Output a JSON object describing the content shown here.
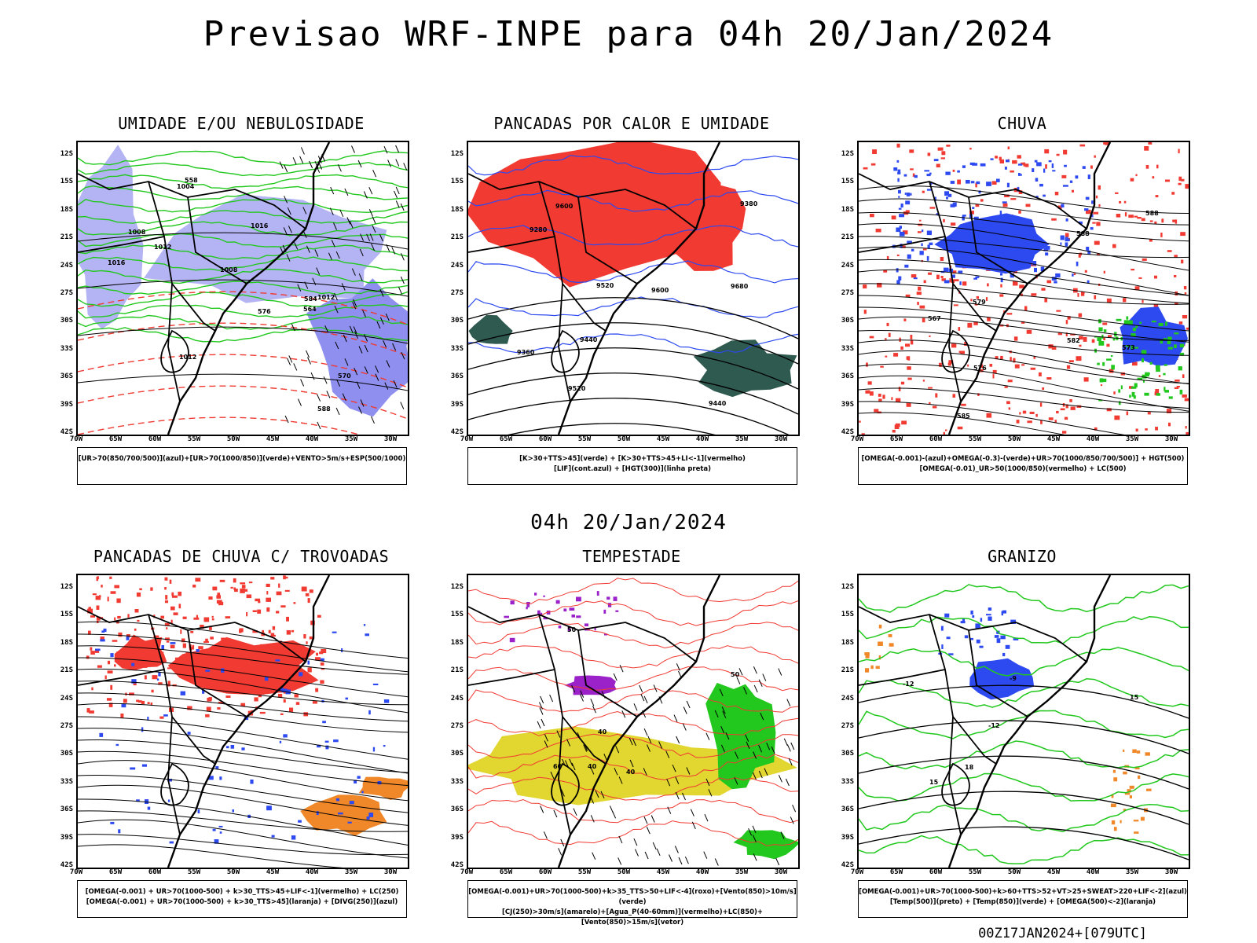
{
  "title": "Previsao WRF-INPE  para 04h 20/Jan/2024",
  "middle_title": "04h 20/Jan/2024",
  "footer": "00Z17JAN2024+[079UTC]",
  "lat_labels": [
    "12S",
    "15S",
    "18S",
    "21S",
    "24S",
    "27S",
    "30S",
    "33S",
    "36S",
    "39S",
    "42S"
  ],
  "lon_labels": [
    "70W",
    "65W",
    "60W",
    "55W",
    "50W",
    "45W",
    "40W",
    "35W",
    "30W"
  ],
  "panels": [
    {
      "title": "UMIDADE E/OU NEBULOSIDADE",
      "legend": [
        "[UR>70(850/700/500)](azul)+[UR>70(1000/850)](verde)+VENTO>5m/s+ESP(500/1000)"
      ],
      "contour_labels": [
        "1012",
        "1008",
        "1008",
        "1004",
        "1012",
        "1016",
        "1016",
        "576",
        "570",
        "564",
        "558",
        "584",
        "588",
        "1012"
      ]
    },
    {
      "title": "PANCADAS POR CALOR E UMIDADE",
      "legend": [
        "[K>30+TTS>45](verde) + [K>30+TTS>45+LI<-1](vermelho)",
        "[LIF](cont.azul) + [HGT(300)](linha preta)"
      ],
      "contour_labels": [
        "9600",
        "9680",
        "9520",
        "9440",
        "9360",
        "9280",
        "9600",
        "9520",
        "9440",
        "9380"
      ]
    },
    {
      "title": "CHUVA",
      "legend": [
        "[OMEGA(-0.001)-(azul)+OMEGA(-0.3)-(verde)+UR>70(1000/850/700/500)] + HGT(500)",
        "[OMEGA(-0.01)_UR>50(1000/850)(vermelho) + LC(500)"
      ],
      "contour_labels": [
        "585",
        "582",
        "579",
        "576",
        "573",
        "588",
        "567",
        "588"
      ]
    },
    {
      "title": "PANCADAS DE CHUVA C/ TROVOADAS",
      "legend": [
        "[OMEGA(-0.001) + UR>70(1000-500) + k>30_TTS>45+LIF<-1](vermelho) + LC(250)",
        "[OMEGA(-0.001) + UR>70(1000-500) + k>30_TTS>45](laranja) + [DIVG(250)](azul)"
      ],
      "contour_labels": []
    },
    {
      "title": "TEMPESTADE",
      "legend": [
        "[OMEGA(-0.001)+UR>70(1000-500)+k>35_TTS>50+LIF<-4](roxo)+[Vento(850)>10m/s](verde)",
        "[CJ(250)>30m/s](amarelo)+[Agua_P(40-60mm)](vermelho)+LC(850)+[Vento(850)>15m/s](vetor)"
      ],
      "contour_labels": [
        "40",
        "50",
        "60",
        "40",
        "40",
        "50"
      ]
    },
    {
      "title": "GRANIZO",
      "legend": [
        "[OMEGA(-0.001)+UR>70(1000-500)+k>60+TTS>52+VT>25+SWEAT>220+LIF<-2](azul)",
        "[Temp(500)](preto) + [Temp(850)](verde) + [OMEGA(500)<-2](laranja)"
      ],
      "contour_labels": [
        "-12",
        "-12",
        "15",
        "15",
        "18",
        "-9"
      ]
    }
  ],
  "colors": {
    "red": "#f03a32",
    "blue": "#2d49f0",
    "green": "#22c81e",
    "lightblue": "#b4b4f4",
    "darkteal": "#2f5a50",
    "yellow": "#e2d630",
    "purple": "#9a22c8",
    "orange": "#f0882a"
  }
}
